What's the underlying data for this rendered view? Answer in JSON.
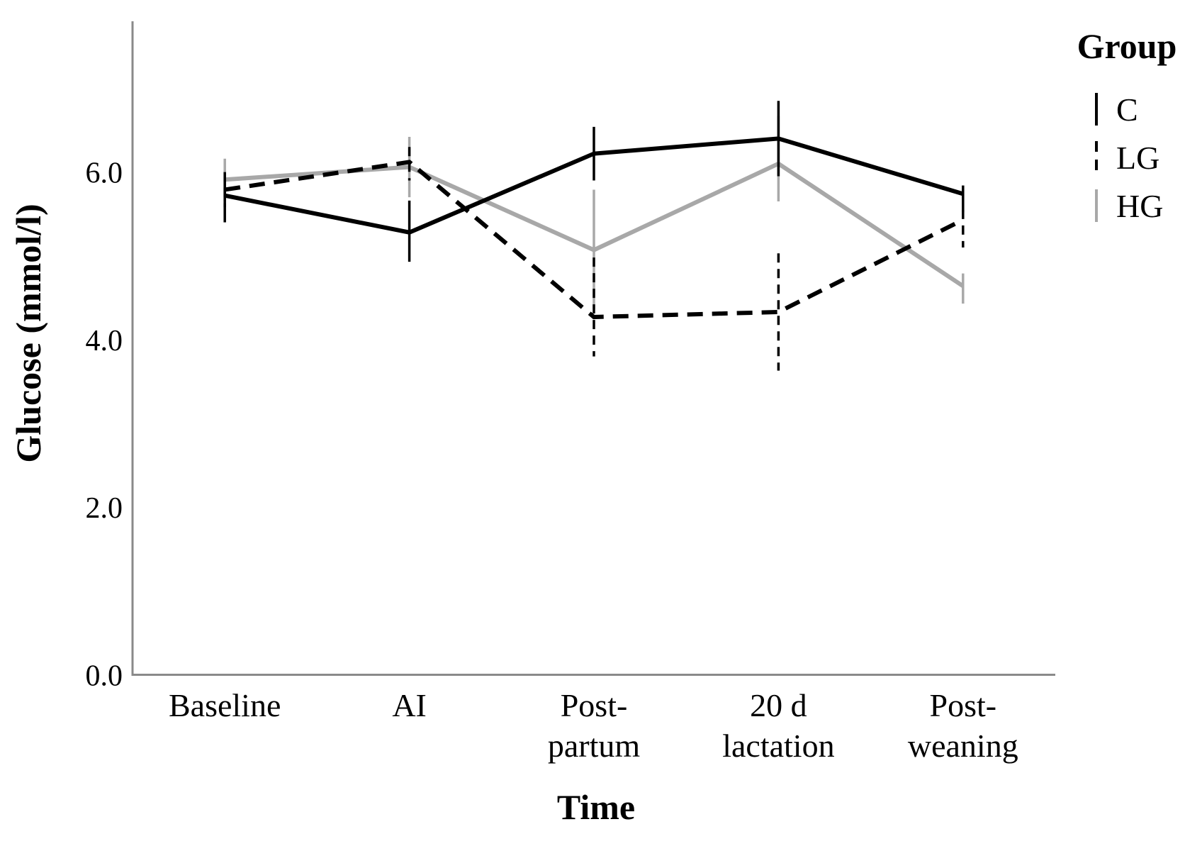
{
  "chart_data": {
    "type": "line",
    "title": "",
    "xlabel": "Time",
    "ylabel": "Glucose (mmol/l)",
    "legend_title": "Group",
    "legend_position": "top-right",
    "grid": false,
    "ylim": [
      0.0,
      7.8
    ],
    "y_ticks": [
      "0.0",
      "2.0",
      "4.0",
      "6.0"
    ],
    "y_tick_values": [
      0.0,
      2.0,
      4.0,
      6.0
    ],
    "categories": [
      "Baseline",
      "AI",
      "Post-partum",
      "20 d lactation",
      "Post-weaning"
    ],
    "category_label_lines": [
      [
        "Baseline"
      ],
      [
        "AI"
      ],
      [
        "Post-",
        "partum"
      ],
      [
        "20 d",
        "lactation"
      ],
      [
        "Post-",
        "weaning"
      ]
    ],
    "axis_color": "#8a8a8a",
    "series": [
      {
        "name": "HG",
        "line_style": "solid",
        "color": "#a8a8a8",
        "values": [
          5.91,
          6.06,
          5.07,
          6.1,
          4.64
        ],
        "error_low": [
          5.65,
          5.7,
          4.36,
          5.65,
          4.43
        ],
        "error_high": [
          6.16,
          6.42,
          5.79,
          6.67,
          4.79
        ]
      },
      {
        "name": "C",
        "line_style": "solid",
        "color": "#000000",
        "values": [
          5.72,
          5.28,
          6.22,
          6.4,
          5.74
        ],
        "error_low": [
          5.4,
          4.93,
          5.9,
          5.95,
          5.52
        ],
        "error_high": [
          5.9,
          5.66,
          6.54,
          6.85,
          5.84
        ]
      },
      {
        "name": "LG",
        "line_style": "dashed",
        "color": "#000000",
        "values": [
          5.79,
          6.12,
          4.27,
          4.33,
          5.43
        ],
        "error_low": [
          5.58,
          5.9,
          3.8,
          3.63,
          5.1
        ],
        "error_high": [
          6.0,
          6.3,
          4.98,
          5.03,
          5.55
        ]
      }
    ],
    "legend_order": [
      "C",
      "LG",
      "HG"
    ]
  }
}
